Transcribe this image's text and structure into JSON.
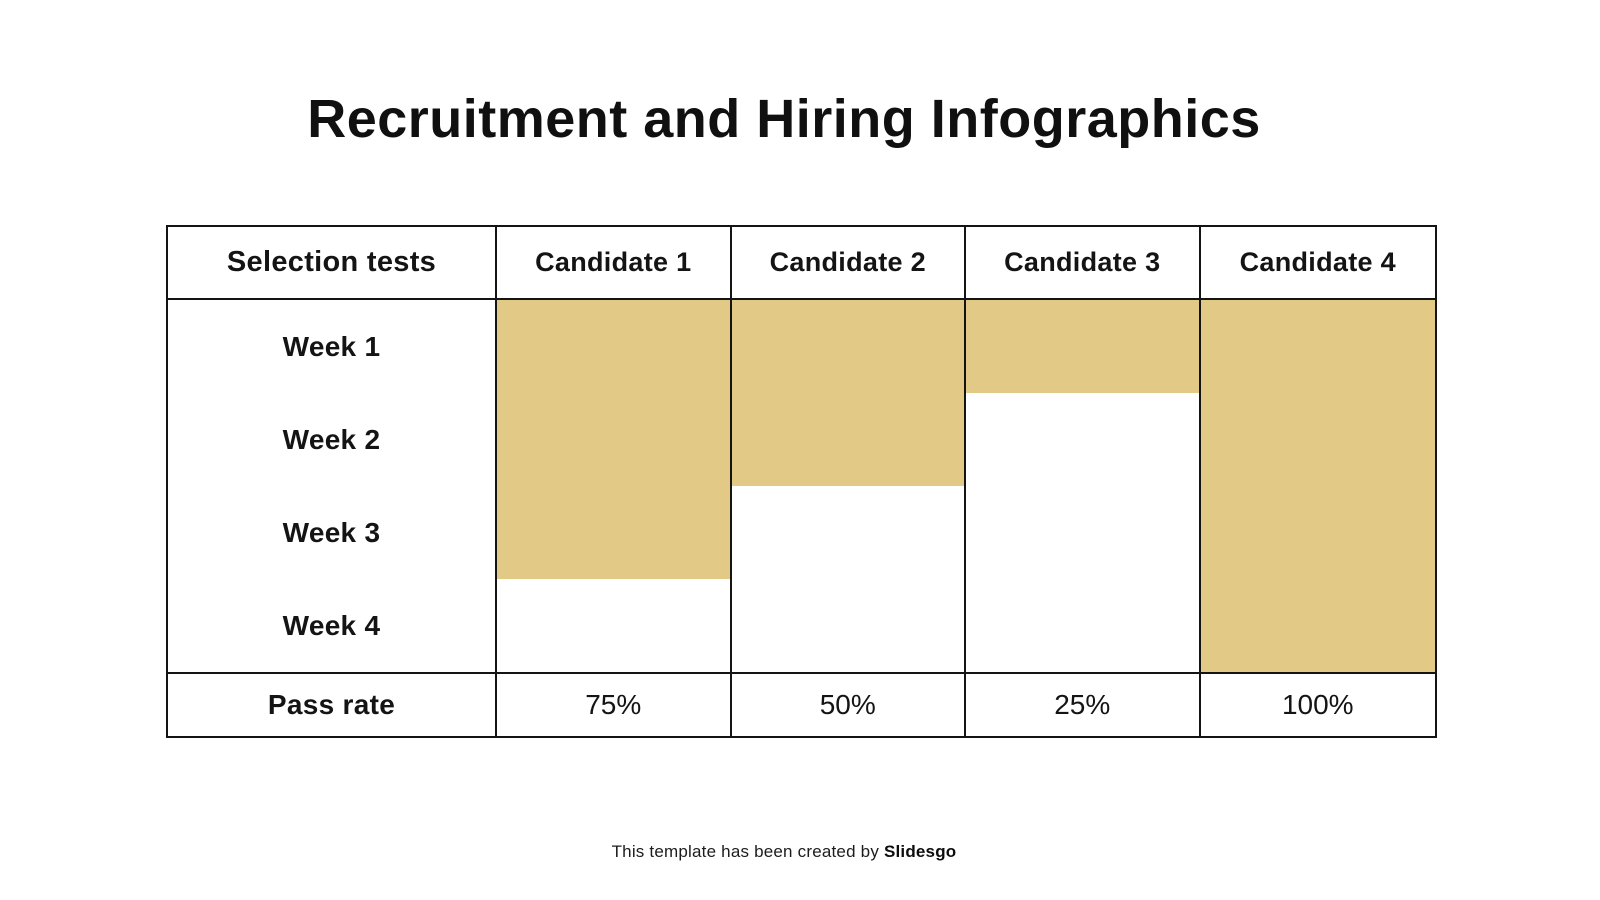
{
  "slide": {
    "title": "Recruitment and Hiring Infographics",
    "footer_prefix": "This template has been created by ",
    "footer_brand": "Slidesgo"
  },
  "colors": {
    "background": "#ffffff",
    "text": "#141414",
    "border": "#141414",
    "bar": "#e3c986"
  },
  "table": {
    "corner_header": "Selection tests",
    "week_labels": [
      "Week 1",
      "Week 2",
      "Week 3",
      "Week 4"
    ],
    "pass_rate_label": "Pass rate",
    "candidates": [
      {
        "name": "Candidate 1",
        "progress_pct": 75,
        "pass_rate": "75%"
      },
      {
        "name": "Candidate 2",
        "progress_pct": 50,
        "pass_rate": "50%"
      },
      {
        "name": "Candidate 3",
        "progress_pct": 25,
        "pass_rate": "25%"
      },
      {
        "name": "Candidate 4",
        "progress_pct": 100,
        "pass_rate": "100%"
      }
    ]
  },
  "chart_data": {
    "type": "table",
    "title": "Recruitment and Hiring Infographics",
    "columns": [
      "Selection tests",
      "Candidate 1",
      "Candidate 2",
      "Candidate 3",
      "Candidate 4"
    ],
    "rows": [
      "Week 1",
      "Week 2",
      "Week 3",
      "Week 4",
      "Pass rate"
    ],
    "series": [
      {
        "name": "Candidate 1",
        "weeks_completed": 3,
        "progress_pct": 75,
        "pass_rate": "75%"
      },
      {
        "name": "Candidate 2",
        "weeks_completed": 2,
        "progress_pct": 50,
        "pass_rate": "50%"
      },
      {
        "name": "Candidate 3",
        "weeks_completed": 1,
        "progress_pct": 25,
        "pass_rate": "25%"
      },
      {
        "name": "Candidate 4",
        "weeks_completed": 4,
        "progress_pct": 100,
        "pass_rate": "100%"
      }
    ],
    "bar_color": "#e3c986",
    "legend": "off",
    "layout": "gold bars start at Week 1 and extend downward proportional to pass rate"
  }
}
